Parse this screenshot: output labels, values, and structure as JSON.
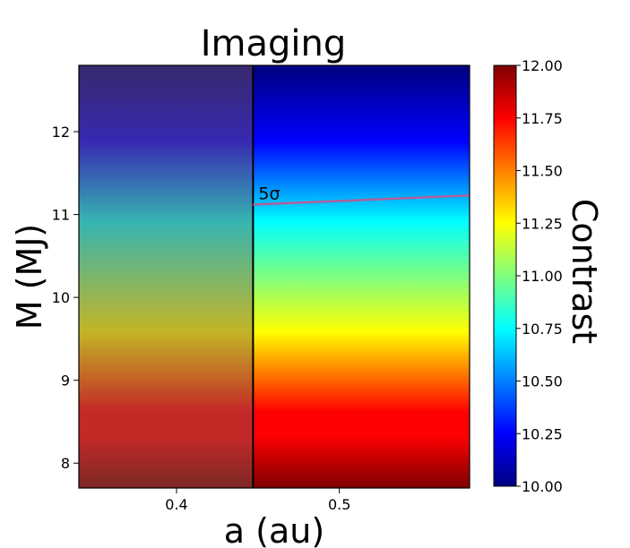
{
  "chart_data": {
    "type": "heatmap",
    "title": "Imaging",
    "xlabel": "a (au)",
    "ylabel": "M (MJ)",
    "xlim": [
      0.34,
      0.58
    ],
    "ylim": [
      7.7,
      12.8
    ],
    "xticks": [
      {
        "value": 0.4,
        "label": "0.4"
      },
      {
        "value": 0.5,
        "label": "0.5"
      }
    ],
    "yticks": [
      {
        "value": 8,
        "label": "8"
      },
      {
        "value": 9,
        "label": "9"
      },
      {
        "value": 10,
        "label": "10"
      },
      {
        "value": 11,
        "label": "11"
      },
      {
        "value": 12,
        "label": "12"
      }
    ],
    "colorbar": {
      "label": "Contrast",
      "colormap": "jet",
      "range": [
        10.0,
        12.0
      ],
      "ticks": [
        {
          "value": 12.0,
          "label": "12.00"
        },
        {
          "value": 11.75,
          "label": "11.75"
        },
        {
          "value": 11.5,
          "label": "11.50"
        },
        {
          "value": 11.25,
          "label": "11.25"
        },
        {
          "value": 11.0,
          "label": "11.00"
        },
        {
          "value": 10.75,
          "label": "10.75"
        },
        {
          "value": 10.5,
          "label": "10.50"
        },
        {
          "value": 10.25,
          "label": "10.25"
        },
        {
          "value": 10.0,
          "label": "10.00"
        }
      ]
    },
    "shaded_region": {
      "x_min": 0.34,
      "x_max": 0.447
    },
    "boundary_line": {
      "x": 0.447
    },
    "contour": {
      "label": "5σ",
      "color": "#b0609a",
      "points": [
        {
          "x": 0.447,
          "y": 11.12
        },
        {
          "x": 0.58,
          "y": 11.23
        }
      ]
    }
  }
}
